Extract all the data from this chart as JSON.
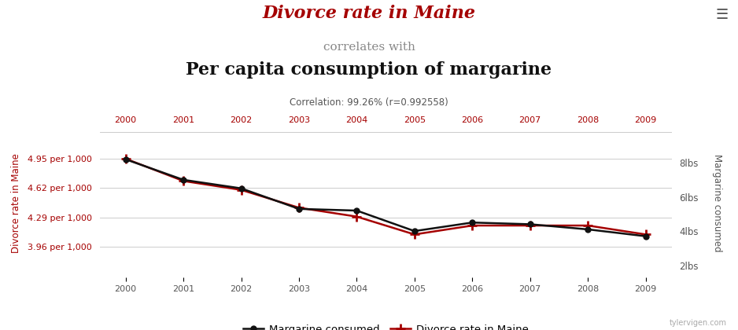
{
  "years": [
    2000,
    2001,
    2002,
    2003,
    2004,
    2005,
    2006,
    2007,
    2008,
    2009
  ],
  "margarine_lbs": [
    8.2,
    7.0,
    6.5,
    5.3,
    5.2,
    4.0,
    4.5,
    4.4,
    4.1,
    3.7
  ],
  "divorce_rate": [
    4.95,
    4.7,
    4.6,
    4.4,
    4.3,
    4.1,
    4.2,
    4.2,
    4.2,
    4.1
  ],
  "title_line1": "Divorce rate in Maine",
  "title_line2": "correlates with",
  "title_line3": "Per capita consumption of margarine",
  "correlation_text": "Correlation: 99.26% (r=0.992558)",
  "ylabel_left": "Divorce rate in Maine",
  "ylabel_right": "Margarine consumed",
  "left_yticks": [
    3.96,
    4.29,
    4.62,
    4.95
  ],
  "left_yticklabels": [
    "3.96 per 1,000",
    "4.29 per 1,000",
    "4.62 per 1,000",
    "4.95 per 1,000"
  ],
  "right_yticks": [
    2,
    4,
    6,
    8
  ],
  "right_yticklabels": [
    "2lbs",
    "4lbs",
    "6lbs",
    "8lbs"
  ],
  "left_ylim": [
    3.62,
    5.25
  ],
  "right_ylim": [
    1.3,
    9.8
  ],
  "color_divorce": "#a50000",
  "color_margarine": "#111111",
  "background_color": "#ffffff",
  "grid_color": "#cccccc",
  "footer_text": "tylervigen.com",
  "legend_margarine": "Margarine consumed",
  "legend_divorce": "Divorce rate in Maine",
  "hamburger": "☰"
}
